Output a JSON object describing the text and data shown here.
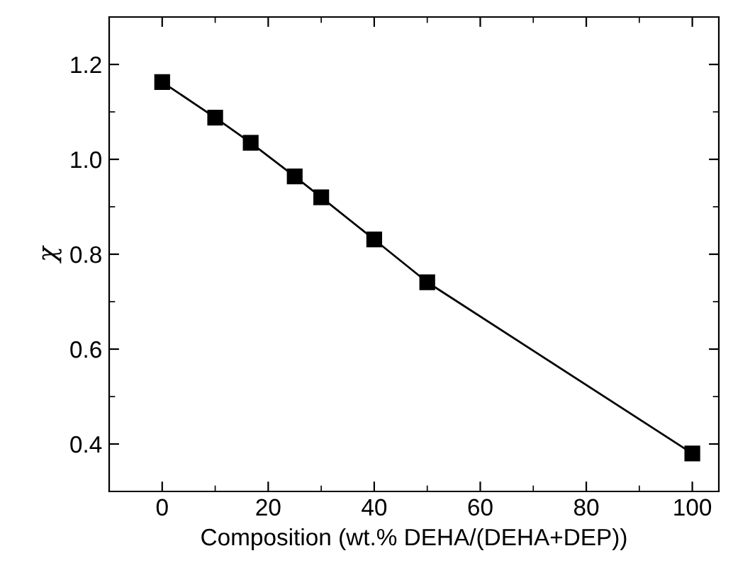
{
  "chart_data": {
    "type": "line",
    "xlabel": "Composition (wt.% DEHA/(DEHA+DEP))",
    "ylabel": "χ",
    "x": [
      0,
      10,
      16.7,
      25,
      30,
      40,
      50,
      100
    ],
    "series": [
      {
        "color": "#000000",
        "values": [
          1.163,
          1.088,
          1.035,
          0.964,
          0.92,
          0.831,
          0.741,
          0.38
        ]
      }
    ],
    "marker": "square",
    "line_style": "solid",
    "grid": false,
    "legend": false,
    "xlim": [
      -10,
      105
    ],
    "xticks": [
      0,
      20,
      40,
      60,
      80,
      100
    ],
    "ylim": [
      0.3,
      1.3
    ],
    "yticks": [
      {
        "value": 0.4,
        "label": "0.4"
      },
      {
        "value": 0.6,
        "label": "0.6"
      },
      {
        "value": 0.8,
        "label": "0.8"
      },
      {
        "value": 1.0,
        "label": "1.0"
      },
      {
        "value": 1.2,
        "label": "1.2"
      }
    ]
  }
}
